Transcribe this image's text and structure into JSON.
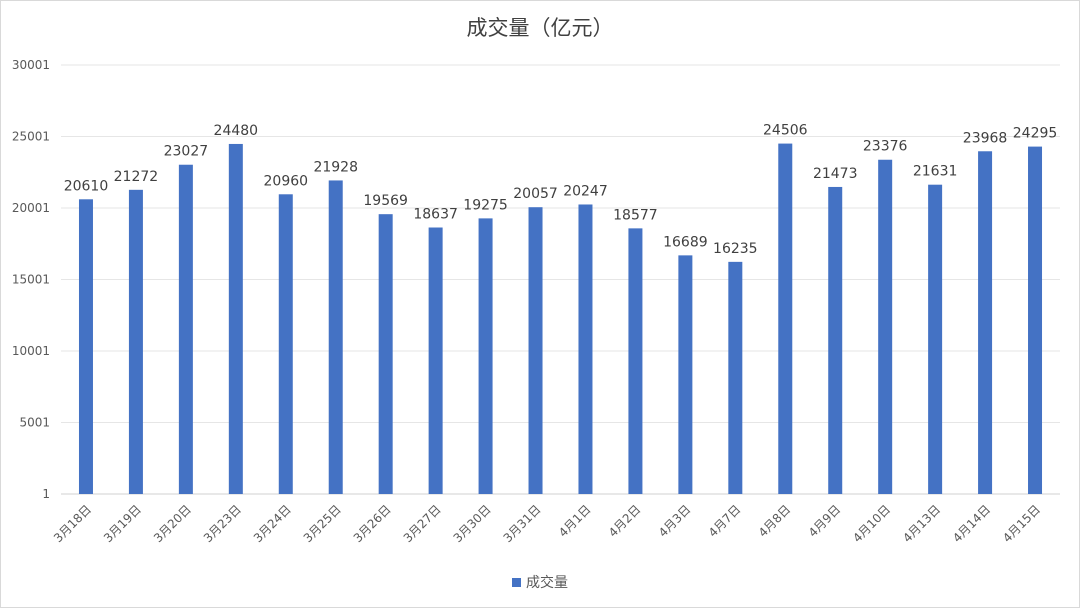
{
  "chart_data": {
    "type": "bar",
    "title": "成交量（亿元）",
    "xlabel": "",
    "ylabel": "",
    "ylim": [
      1,
      30001
    ],
    "yticks": [
      1,
      5001,
      10001,
      15001,
      20001,
      25001,
      30001
    ],
    "grid": true,
    "legend_position": "bottom",
    "categories": [
      "3月18日",
      "3月19日",
      "3月20日",
      "3月23日",
      "3月24日",
      "3月25日",
      "3月26日",
      "3月27日",
      "3月30日",
      "3月31日",
      "4月1日",
      "4月2日",
      "4月3日",
      "4月7日",
      "4月8日",
      "4月9日",
      "4月10日",
      "4月13日",
      "4月14日",
      "4月15日"
    ],
    "series": [
      {
        "name": "成交量",
        "color": "#4472c4",
        "values": [
          20610,
          21272,
          23027,
          24480,
          20960,
          21928,
          19569,
          18637,
          19275,
          20057,
          20247,
          18577,
          16689,
          16235,
          24506,
          21473,
          23376,
          21631,
          23968,
          24295
        ]
      }
    ]
  }
}
